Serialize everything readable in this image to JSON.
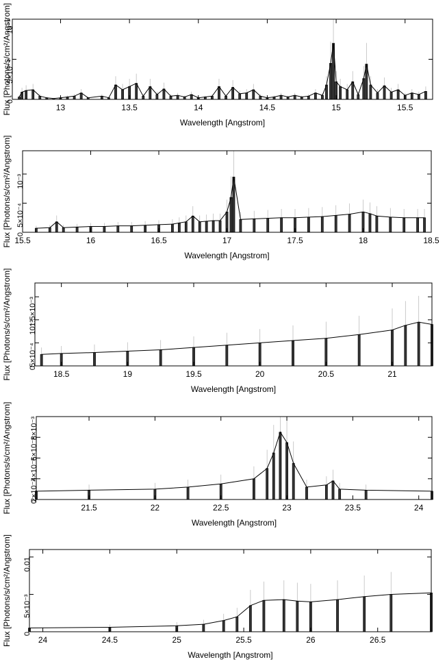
{
  "chart_data": [
    {
      "type": "line",
      "title": "",
      "xlabel": "Wavelength [Angstrom]",
      "ylabel": "Flux [Photons/s/cm²/Angstrom]",
      "xlim": [
        12.65,
        15.7
      ],
      "ylim": [
        0,
        0.001
      ],
      "xticks": [
        {
          "v": 13,
          "label": "13"
        },
        {
          "v": 13.5,
          "label": "13.5"
        },
        {
          "v": 14,
          "label": "14"
        },
        {
          "v": 14.5,
          "label": "14.5"
        },
        {
          "v": 15,
          "label": "15"
        },
        {
          "v": 15.5,
          "label": "15.5"
        }
      ],
      "yticks": [
        {
          "v": 0,
          "label": "0"
        },
        {
          "v": 0.0005,
          "label": "5×10⁻⁴"
        },
        {
          "v": 0.001,
          "label": "10⁻³"
        }
      ],
      "series": [
        {
          "values": [
            [
              12.7,
              3e-05
            ],
            [
              12.72,
              9e-05
            ],
            [
              12.75,
              0.00011
            ],
            [
              12.8,
              0.00012
            ],
            [
              12.85,
              4e-05
            ],
            [
              12.9,
              2e-05
            ],
            [
              12.95,
              1e-05
            ],
            [
              13.0,
              2e-05
            ],
            [
              13.05,
              3e-05
            ],
            [
              13.1,
              4e-05
            ],
            [
              13.15,
              8e-05
            ],
            [
              13.2,
              2e-05
            ],
            [
              13.3,
              4e-05
            ],
            [
              13.35,
              2e-05
            ],
            [
              13.4,
              0.00018
            ],
            [
              13.45,
              0.00012
            ],
            [
              13.5,
              0.00016
            ],
            [
              13.55,
              0.0002
            ],
            [
              13.6,
              4e-05
            ],
            [
              13.65,
              0.00016
            ],
            [
              13.7,
              6e-05
            ],
            [
              13.75,
              0.00013
            ],
            [
              13.8,
              4e-05
            ],
            [
              13.85,
              5e-05
            ],
            [
              13.9,
              3e-05
            ],
            [
              13.95,
              6e-05
            ],
            [
              14.0,
              2e-05
            ],
            [
              14.05,
              3e-05
            ],
            [
              14.1,
              4e-05
            ],
            [
              14.15,
              0.00016
            ],
            [
              14.2,
              4e-05
            ],
            [
              14.25,
              0.00015
            ],
            [
              14.3,
              7e-05
            ],
            [
              14.35,
              8e-05
            ],
            [
              14.4,
              0.00012
            ],
            [
              14.45,
              4e-05
            ],
            [
              14.5,
              2e-05
            ],
            [
              14.55,
              3e-05
            ],
            [
              14.6,
              5e-05
            ],
            [
              14.65,
              3e-05
            ],
            [
              14.7,
              5e-05
            ],
            [
              14.75,
              3e-05
            ],
            [
              14.8,
              4e-05
            ],
            [
              14.85,
              8e-05
            ],
            [
              14.9,
              5e-05
            ],
            [
              14.93,
              0.00018
            ],
            [
              14.96,
              0.00045
            ],
            [
              14.98,
              0.0007
            ],
            [
              15.0,
              0.00022
            ],
            [
              15.03,
              0.00016
            ],
            [
              15.08,
              0.00012
            ],
            [
              15.12,
              0.00022
            ],
            [
              15.16,
              6e-05
            ],
            [
              15.2,
              0.00026
            ],
            [
              15.22,
              0.00044
            ],
            [
              15.25,
              0.00018
            ],
            [
              15.3,
              8e-05
            ],
            [
              15.35,
              0.00017
            ],
            [
              15.4,
              9e-05
            ],
            [
              15.45,
              0.00012
            ],
            [
              15.5,
              5e-05
            ],
            [
              15.55,
              8e-05
            ],
            [
              15.6,
              6e-05
            ],
            [
              15.65,
              0.0001
            ]
          ]
        }
      ]
    },
    {
      "type": "line",
      "title": "",
      "xlabel": "Wavelength [Angstrom]",
      "ylabel": "Flux [Photons/s/cm²/Angstrom]",
      "xlim": [
        15.5,
        18.5
      ],
      "ylim": [
        0,
        0.0014
      ],
      "xticks": [
        {
          "v": 15.5,
          "label": "15.5"
        },
        {
          "v": 16,
          "label": "16"
        },
        {
          "v": 16.5,
          "label": "16.5"
        },
        {
          "v": 17,
          "label": "17"
        },
        {
          "v": 17.5,
          "label": "17.5"
        },
        {
          "v": 18,
          "label": "18"
        },
        {
          "v": 18.5,
          "label": "18.5"
        }
      ],
      "yticks": [
        {
          "v": 0,
          "label": "0"
        },
        {
          "v": 0.0005,
          "label": "5×10⁻⁴"
        },
        {
          "v": 0.001,
          "label": "10⁻³"
        }
      ],
      "series": [
        {
          "values": [
            [
              15.6,
              7e-05
            ],
            [
              15.7,
              8e-05
            ],
            [
              15.75,
              0.00018
            ],
            [
              15.8,
              8e-05
            ],
            [
              15.9,
              9e-05
            ],
            [
              16.0,
              0.0001
            ],
            [
              16.1,
              0.0001
            ],
            [
              16.2,
              0.00011
            ],
            [
              16.3,
              0.00011
            ],
            [
              16.4,
              0.00012
            ],
            [
              16.5,
              0.00013
            ],
            [
              16.6,
              0.00014
            ],
            [
              16.65,
              0.00016
            ],
            [
              16.7,
              0.00018
            ],
            [
              16.75,
              0.00028
            ],
            [
              16.8,
              0.00018
            ],
            [
              16.85,
              0.00019
            ],
            [
              16.9,
              0.0002
            ],
            [
              16.95,
              0.0002
            ],
            [
              17.0,
              0.00035
            ],
            [
              17.03,
              0.0006
            ],
            [
              17.05,
              0.00095
            ],
            [
              17.1,
              0.00022
            ],
            [
              17.2,
              0.00023
            ],
            [
              17.3,
              0.00024
            ],
            [
              17.4,
              0.00025
            ],
            [
              17.5,
              0.00025
            ],
            [
              17.6,
              0.00026
            ],
            [
              17.7,
              0.00027
            ],
            [
              17.8,
              0.00029
            ],
            [
              17.9,
              0.00031
            ],
            [
              18.0,
              0.00035
            ],
            [
              18.05,
              0.00032
            ],
            [
              18.1,
              0.00028
            ],
            [
              18.2,
              0.00026
            ],
            [
              18.3,
              0.00025
            ],
            [
              18.4,
              0.00025
            ],
            [
              18.45,
              0.00025
            ]
          ]
        }
      ]
    },
    {
      "type": "line",
      "title": "",
      "xlabel": "Wavelength [Angstrom]",
      "ylabel": "Flux [Photons/s/cm²/Angstrom]",
      "xlim": [
        18.3,
        21.3
      ],
      "ylim": [
        0,
        0.0018
      ],
      "xticks": [
        {
          "v": 18.5,
          "label": "18.5"
        },
        {
          "v": 19,
          "label": "19"
        },
        {
          "v": 19.5,
          "label": "19.5"
        },
        {
          "v": 20,
          "label": "20"
        },
        {
          "v": 20.5,
          "label": "20.5"
        },
        {
          "v": 21,
          "label": "21"
        }
      ],
      "yticks": [
        {
          "v": 0,
          "label": "0"
        },
        {
          "v": 0.0005,
          "label": "5×10⁻⁴"
        },
        {
          "v": 0.001,
          "label": "10⁻³"
        },
        {
          "v": 0.0015,
          "label": "1.5×10⁻³"
        }
      ],
      "series": [
        {
          "values": [
            [
              18.35,
              0.00025
            ],
            [
              18.5,
              0.00027
            ],
            [
              18.75,
              0.00029
            ],
            [
              19.0,
              0.00032
            ],
            [
              19.25,
              0.00035
            ],
            [
              19.5,
              0.0004
            ],
            [
              19.75,
              0.00045
            ],
            [
              20.0,
              0.0005
            ],
            [
              20.25,
              0.00055
            ],
            [
              20.5,
              0.0006
            ],
            [
              20.75,
              0.00068
            ],
            [
              21.0,
              0.00078
            ],
            [
              21.1,
              0.00088
            ],
            [
              21.2,
              0.00095
            ],
            [
              21.3,
              0.0009
            ]
          ]
        }
      ]
    },
    {
      "type": "line",
      "title": "",
      "xlabel": "Wavelength [Angstrom]",
      "ylabel": "Flux [Photons/s/cm²/Angstrom]",
      "xlim": [
        21.1,
        24.1
      ],
      "ylim": [
        0,
        0.008
      ],
      "xticks": [
        {
          "v": 21.5,
          "label": "21.5"
        },
        {
          "v": 22,
          "label": "22"
        },
        {
          "v": 22.5,
          "label": "22.5"
        },
        {
          "v": 23,
          "label": "23"
        },
        {
          "v": 23.5,
          "label": "23.5"
        },
        {
          "v": 24,
          "label": "24"
        }
      ],
      "yticks": [
        {
          "v": 0,
          "label": "0"
        },
        {
          "v": 0.002,
          "label": "2×10⁻³"
        },
        {
          "v": 0.004,
          "label": "4×10⁻³"
        },
        {
          "v": 0.006,
          "label": "6×10⁻³"
        },
        {
          "v": 0.008,
          "label": "8×10⁻³"
        }
      ],
      "series": [
        {
          "values": [
            [
              21.1,
              0.0008
            ],
            [
              21.5,
              0.0009
            ],
            [
              22.0,
              0.001
            ],
            [
              22.25,
              0.0012
            ],
            [
              22.5,
              0.0015
            ],
            [
              22.75,
              0.002
            ],
            [
              22.85,
              0.003
            ],
            [
              22.9,
              0.0045
            ],
            [
              22.95,
              0.0065
            ],
            [
              23.0,
              0.0055
            ],
            [
              23.05,
              0.0035
            ],
            [
              23.15,
              0.0012
            ],
            [
              23.3,
              0.0014
            ],
            [
              23.35,
              0.0018
            ],
            [
              23.4,
              0.001
            ],
            [
              23.6,
              0.0009
            ],
            [
              24.1,
              0.0008
            ]
          ]
        }
      ]
    },
    {
      "type": "line",
      "title": "",
      "xlabel": "Wavelength [Angstrom]",
      "ylabel": "Flux [Photons/s/cm²/Angstrom]",
      "xlim": [
        23.9,
        26.9
      ],
      "ylim": [
        0,
        0.011
      ],
      "xticks": [
        {
          "v": 24,
          "label": "24"
        },
        {
          "v": 24.5,
          "label": "24.5"
        },
        {
          "v": 25,
          "label": "25"
        },
        {
          "v": 25.5,
          "label": "25.5"
        },
        {
          "v": 26,
          "label": "26"
        },
        {
          "v": 26.5,
          "label": "26.5"
        }
      ],
      "yticks": [
        {
          "v": 0,
          "label": "0"
        },
        {
          "v": 0.005,
          "label": "5×10⁻³"
        },
        {
          "v": 0.01,
          "label": "0.01"
        }
      ],
      "series": [
        {
          "values": [
            [
              23.9,
              0.0005
            ],
            [
              24.5,
              0.0006
            ],
            [
              25.0,
              0.0008
            ],
            [
              25.2,
              0.001
            ],
            [
              25.35,
              0.0015
            ],
            [
              25.45,
              0.002
            ],
            [
              25.55,
              0.0035
            ],
            [
              25.65,
              0.0042
            ],
            [
              25.8,
              0.0043
            ],
            [
              25.9,
              0.0041
            ],
            [
              26.0,
              0.004
            ],
            [
              26.2,
              0.0043
            ],
            [
              26.4,
              0.0047
            ],
            [
              26.6,
              0.005
            ],
            [
              26.9,
              0.0052
            ]
          ]
        }
      ]
    }
  ]
}
